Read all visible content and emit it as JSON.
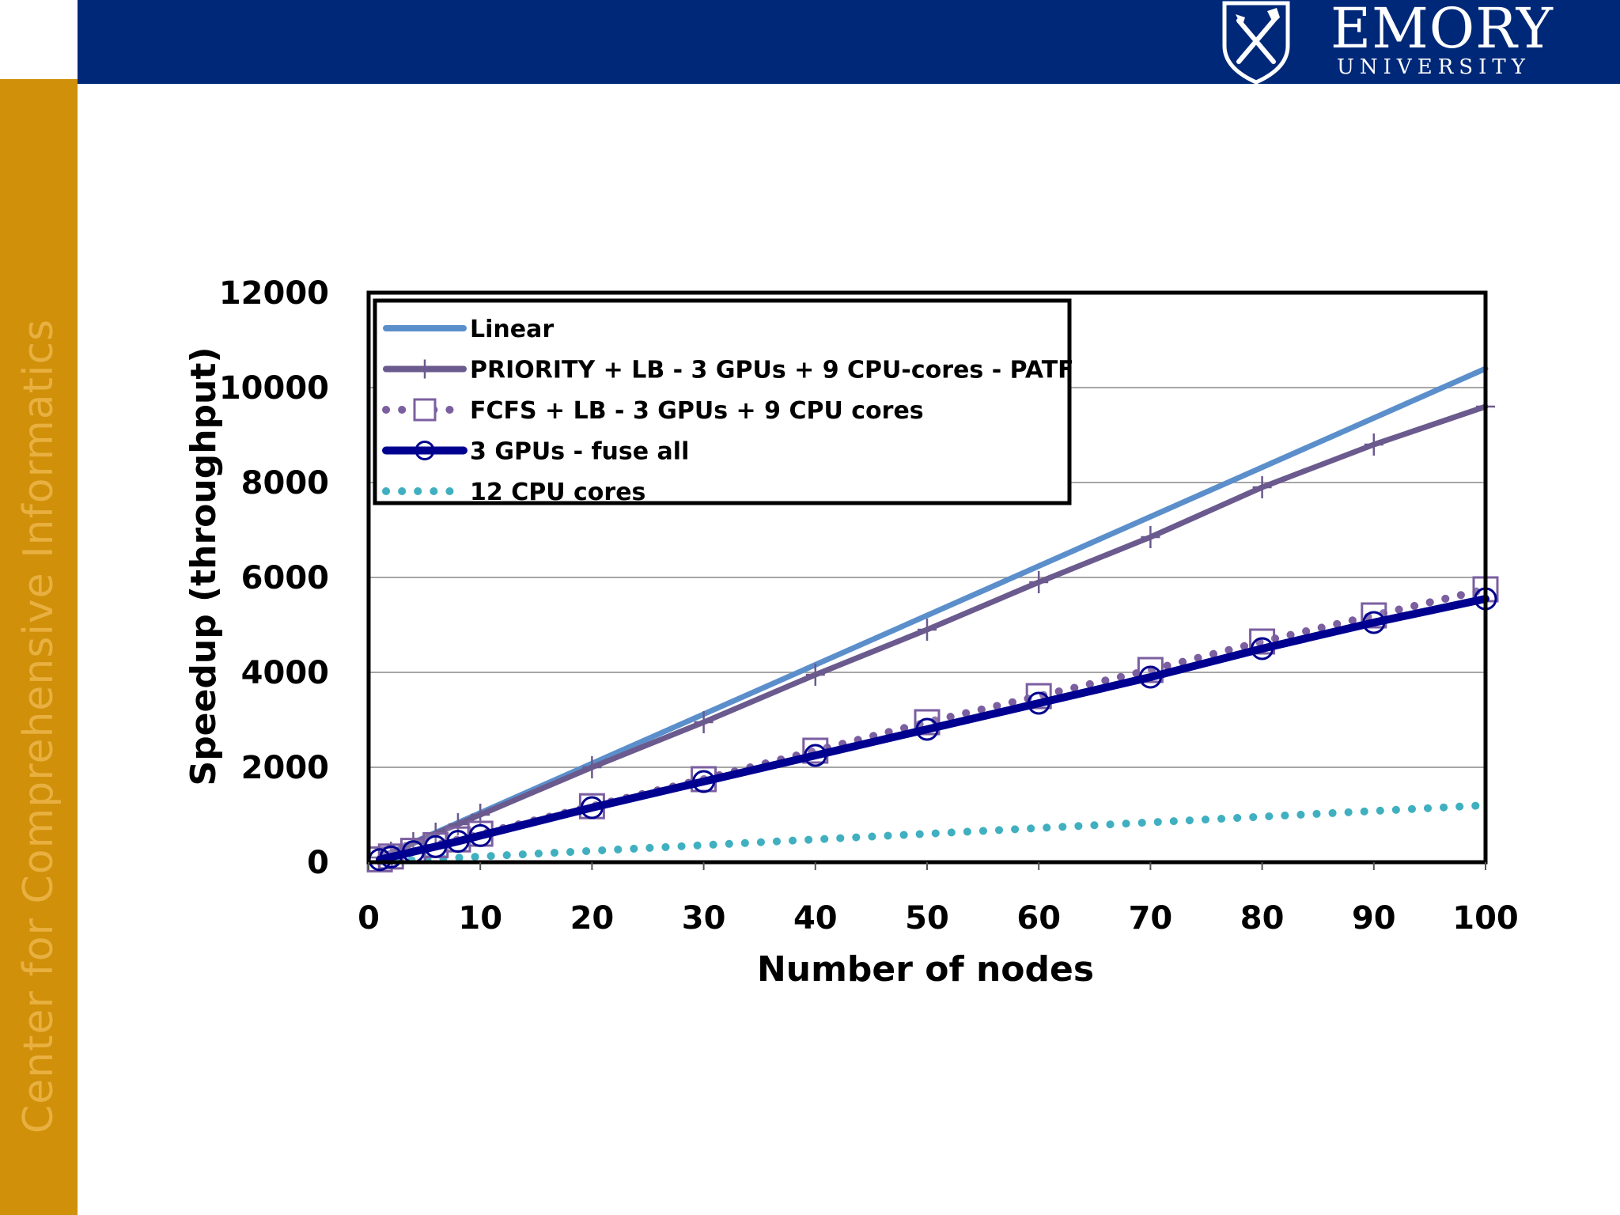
{
  "header": {
    "university": "EMORY",
    "university_sub": "UNIVERSITY"
  },
  "sidebar": {
    "text": "Center for Comprehensive Informatics"
  },
  "colors": {
    "top_bar": "#002878",
    "side_bar": "#D0900A",
    "linear": "#5B8FCB",
    "priority": "#6B5A8E",
    "fcfs": "#7B5FA0",
    "gpus": "#000090",
    "cpu": "#40B0C0"
  },
  "chart_data": {
    "type": "line",
    "title": "",
    "xlabel": "Number of nodes",
    "ylabel": "Speedup (throughput)",
    "xlim": [
      0,
      100
    ],
    "ylim": [
      0,
      12000
    ],
    "xticks": [
      0,
      10,
      20,
      30,
      40,
      50,
      60,
      70,
      80,
      90,
      100
    ],
    "yticks": [
      0,
      2000,
      4000,
      6000,
      8000,
      10000,
      12000
    ],
    "grid": "horizontal",
    "legend_position": "top-left",
    "series": [
      {
        "name": "Linear",
        "style": "solid",
        "marker": "none",
        "color": "#5B8FCB",
        "x": [
          1,
          100
        ],
        "y": [
          104,
          10400
        ]
      },
      {
        "name": "PRIORITY + LB - 3 GPUs + 9 CPU-cores - PATF",
        "style": "solid",
        "marker": "plus",
        "color": "#6B5A8E",
        "x": [
          1,
          2,
          4,
          6,
          8,
          10,
          20,
          30,
          40,
          50,
          60,
          70,
          80,
          90,
          100
        ],
        "y": [
          100,
          200,
          400,
          600,
          800,
          1000,
          2000,
          2950,
          3950,
          4900,
          5900,
          6850,
          7900,
          8800,
          9600
        ]
      },
      {
        "name": "FCFS + LB - 3 GPUs + 9 CPU cores",
        "style": "dotted",
        "marker": "square",
        "color": "#7B5FA0",
        "x": [
          1,
          2,
          4,
          6,
          8,
          10,
          20,
          30,
          40,
          50,
          60,
          70,
          80,
          90,
          100
        ],
        "y": [
          60,
          120,
          240,
          360,
          480,
          600,
          1180,
          1750,
          2350,
          2950,
          3500,
          4050,
          4650,
          5200,
          5750
        ]
      },
      {
        "name": "3 GPUs - fuse all",
        "style": "solid",
        "marker": "circle",
        "color": "#000090",
        "x": [
          1,
          2,
          4,
          6,
          8,
          10,
          20,
          30,
          40,
          50,
          60,
          70,
          80,
          90,
          100
        ],
        "y": [
          55,
          110,
          220,
          330,
          440,
          560,
          1150,
          1700,
          2250,
          2800,
          3350,
          3900,
          4500,
          5050,
          5550
        ]
      },
      {
        "name": "12 CPU cores",
        "style": "dotted",
        "marker": "none",
        "color": "#40B0C0",
        "x": [
          1,
          10,
          20,
          30,
          40,
          50,
          60,
          70,
          80,
          90,
          100
        ],
        "y": [
          12,
          120,
          240,
          360,
          480,
          600,
          720,
          840,
          960,
          1080,
          1200
        ]
      }
    ]
  }
}
